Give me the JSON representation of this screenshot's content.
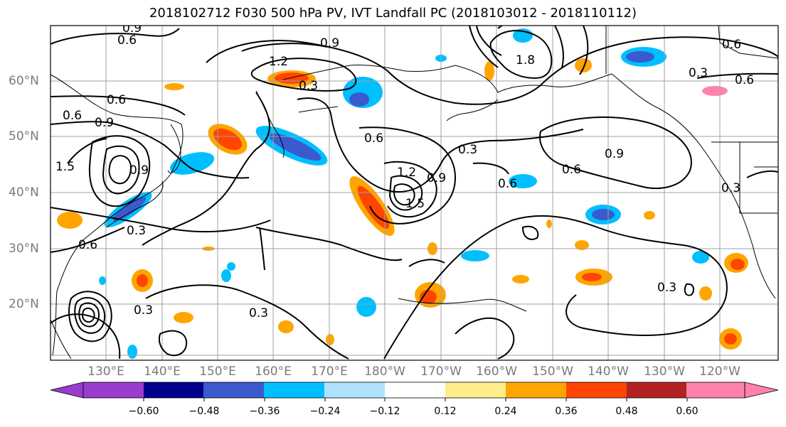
{
  "title": "2018102712 F030 500 hPa PV, IVT Landfall PC (2018103012 - 2018110112)",
  "latitude_labels": [
    "60°N",
    "50°N",
    "40°N",
    "30°N",
    "20°N"
  ],
  "longitude_labels": [
    "130°E",
    "140°E",
    "150°E",
    "160°E",
    "170°E",
    "180°W",
    "170°W",
    "160°W",
    "150°W",
    "140°W",
    "130°W",
    "120°W"
  ],
  "contour_labels": [
    "0.9",
    "0.6",
    "0.9",
    "1.2",
    "0.3",
    "0.6",
    "0.9",
    "0.3",
    "0.6",
    "1.2",
    "0.9",
    "0.6",
    "1.5",
    "0.3",
    "0.9",
    "0.6",
    "0.3",
    "0.3",
    "0.3",
    "0.3",
    "0.6",
    "0.6",
    "0.3",
    "1.8",
    "0.6",
    "1.5",
    "0.6",
    "0.9"
  ],
  "colorbar": {
    "ticks": [
      "−0.60",
      "−0.48",
      "−0.36",
      "−0.24",
      "−0.12",
      "0.12",
      "0.24",
      "0.36",
      "0.48",
      "0.60"
    ],
    "colors": [
      "#9a3ccf",
      "#00008b",
      "#3a5bcd",
      "#00bfff",
      "#b0e2ff",
      "#ffffff",
      "#ffec8b",
      "#ffa500",
      "#ff4500",
      "#b22222",
      "#ff82ab"
    ]
  },
  "colors": {
    "contour": "#000000",
    "coast": "#000000",
    "grid": "#a0a0a0",
    "axis_label": "#7a7a7a"
  },
  "icons": [
    "colorbar-extend-left-triangle",
    "colorbar-extend-right-triangle"
  ]
}
